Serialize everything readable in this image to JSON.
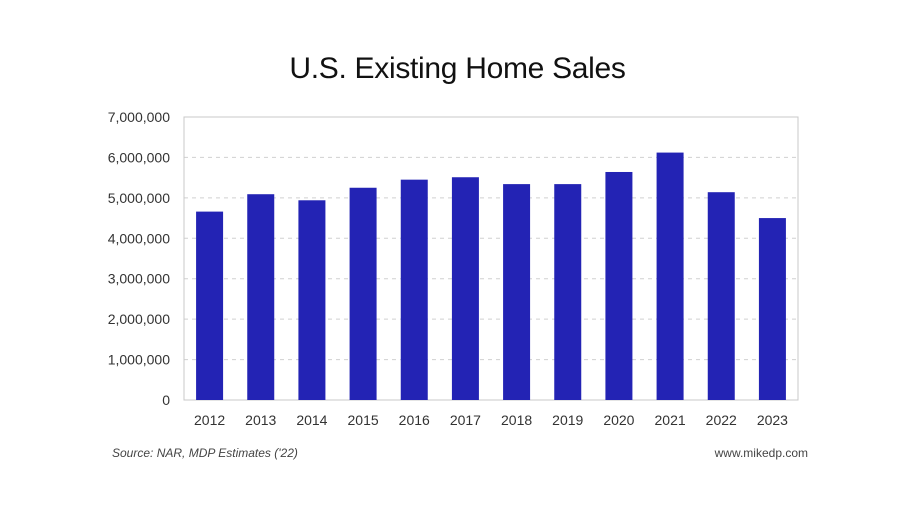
{
  "chart_data": {
    "type": "bar",
    "title": "U.S. Existing Home Sales",
    "categories": [
      "2012",
      "2013",
      "2014",
      "2015",
      "2016",
      "2017",
      "2018",
      "2019",
      "2020",
      "2021",
      "2022",
      "2023"
    ],
    "values": [
      4660000,
      5090000,
      4940000,
      5250000,
      5450000,
      5510000,
      5340000,
      5340000,
      5640000,
      6120000,
      5140000,
      4500000
    ],
    "ylim": [
      0,
      7000000
    ],
    "yticks": [
      0,
      1000000,
      2000000,
      3000000,
      4000000,
      5000000,
      6000000,
      7000000
    ],
    "ytick_labels": [
      "0",
      "1,000,000",
      "2,000,000",
      "3,000,000",
      "4,000,000",
      "5,000,000",
      "6,000,000",
      "7,000,000"
    ],
    "xlabel": "",
    "ylabel": "",
    "bar_color": "#2323b4",
    "grid": "dashed-horizontal"
  },
  "footer": {
    "source": "Source: NAR, MDP Estimates ('22)",
    "website": "www.mikedp.com"
  }
}
